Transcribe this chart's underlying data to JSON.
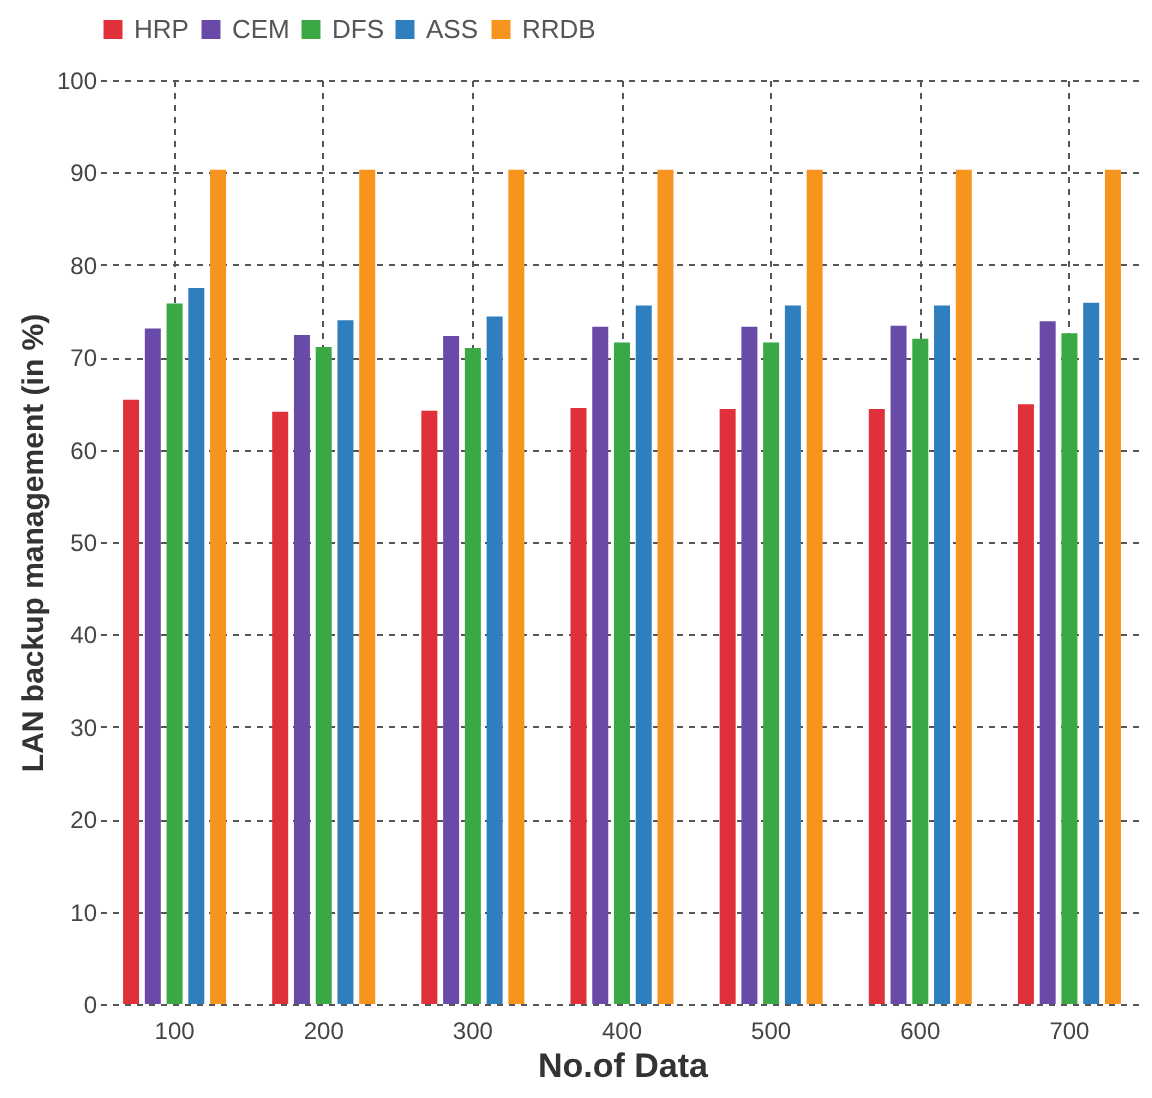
{
  "chart_data": {
    "type": "bar",
    "xlabel": "No.of Data",
    "ylabel": "LAN backup management (in %)",
    "categories": [
      "100",
      "200",
      "300",
      "400",
      "500",
      "600",
      "700"
    ],
    "series": [
      {
        "name": "HRP",
        "color": "#e0303a",
        "values": [
          65.4,
          64.1,
          64.2,
          64.5,
          64.4,
          64.4,
          64.9
        ]
      },
      {
        "name": "CEM",
        "color": "#6a4aa8",
        "values": [
          73.1,
          72.4,
          72.3,
          73.3,
          73.3,
          73.4,
          73.9
        ]
      },
      {
        "name": "DFS",
        "color": "#3aa844",
        "values": [
          75.8,
          71.1,
          71.0,
          71.6,
          71.6,
          72.0,
          72.6
        ]
      },
      {
        "name": "ASS",
        "color": "#2f7fbf",
        "values": [
          77.5,
          74.0,
          74.4,
          75.6,
          75.6,
          75.6,
          75.9
        ]
      },
      {
        "name": "RRDB",
        "color": "#f7941d",
        "values": [
          90.3,
          90.3,
          90.3,
          90.3,
          90.3,
          90.3,
          90.3
        ]
      }
    ],
    "ylim": [
      0,
      100
    ],
    "yticks": [
      0,
      10,
      20,
      30,
      40,
      50,
      60,
      70,
      80,
      90,
      100
    ],
    "grid": true,
    "legend": "top left"
  }
}
